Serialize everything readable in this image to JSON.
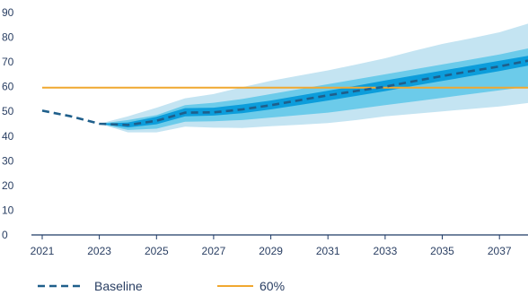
{
  "chart_data": {
    "type": "line",
    "title": "",
    "xlabel": "",
    "ylabel": "",
    "xlim": [
      2021,
      2038
    ],
    "ylim": [
      0,
      90
    ],
    "x_ticks": [
      2021,
      2023,
      2025,
      2027,
      2029,
      2031,
      2033,
      2035,
      2037
    ],
    "y_ticks": [
      0,
      10,
      20,
      30,
      40,
      50,
      60,
      70,
      80,
      90
    ],
    "grid": false,
    "legend_position": "bottom",
    "colors": {
      "baseline": "#1f5f8b",
      "threshold": "#f0a830",
      "band_outer": "#c4e4f2",
      "band_mid": "#6ccbea",
      "band_inner": "#0c9ddb",
      "axis": "#1e3a66",
      "text": "#2a3f63"
    },
    "series": [
      {
        "name": "Baseline",
        "style": "dashed",
        "x": [
          2021,
          2022,
          2023,
          2024,
          2025,
          2026,
          2027,
          2028,
          2029,
          2030,
          2031,
          2032,
          2033,
          2034,
          2035,
          2036,
          2037,
          2038
        ],
        "values": [
          50.3,
          48.0,
          45.0,
          44.5,
          46.2,
          49.5,
          49.6,
          50.8,
          52.5,
          54.5,
          56.5,
          58.3,
          60.0,
          62.2,
          64.3,
          66.3,
          68.2,
          70.5
        ]
      },
      {
        "name": "60%",
        "style": "solid",
        "x": [
          2021,
          2038
        ],
        "values": [
          59.6,
          59.6
        ]
      }
    ],
    "bands": [
      {
        "level": "outer",
        "x": [
          2023,
          2024,
          2025,
          2026,
          2027,
          2028,
          2029,
          2030,
          2031,
          2032,
          2033,
          2034,
          2035,
          2036,
          2037,
          2038
        ],
        "low": [
          45.0,
          41.5,
          41.5,
          43.8,
          43.4,
          43.3,
          44.0,
          44.6,
          45.3,
          46.5,
          48.0,
          49.0,
          50.0,
          51.0,
          52.0,
          53.4
        ],
        "high": [
          45.0,
          48.0,
          51.5,
          55.3,
          57.0,
          59.8,
          62.4,
          64.5,
          66.6,
          69.0,
          71.5,
          74.5,
          77.3,
          79.6,
          82.0,
          85.5
        ]
      },
      {
        "level": "mid",
        "x": [
          2023,
          2024,
          2025,
          2026,
          2027,
          2028,
          2029,
          2030,
          2031,
          2032,
          2033,
          2034,
          2035,
          2036,
          2037,
          2038
        ],
        "low": [
          45.0,
          42.5,
          43.0,
          45.8,
          46.0,
          46.5,
          47.5,
          48.5,
          49.5,
          51.0,
          52.5,
          54.0,
          55.5,
          57.0,
          58.5,
          60.0
        ],
        "high": [
          45.0,
          46.5,
          48.5,
          52.5,
          53.5,
          55.0,
          57.0,
          59.0,
          61.0,
          63.0,
          65.0,
          67.0,
          69.0,
          71.0,
          73.0,
          75.5
        ]
      },
      {
        "level": "inner",
        "x": [
          2023,
          2024,
          2025,
          2026,
          2027,
          2028,
          2029,
          2030,
          2031,
          2032,
          2033,
          2034,
          2035,
          2036,
          2037,
          2038
        ],
        "low": [
          45.0,
          43.5,
          44.8,
          48.0,
          48.3,
          49.3,
          50.8,
          52.6,
          54.4,
          56.3,
          58.2,
          60.3,
          62.3,
          64.3,
          66.3,
          68.5
        ],
        "high": [
          45.0,
          45.5,
          47.8,
          51.3,
          51.5,
          52.8,
          54.4,
          56.4,
          58.4,
          60.4,
          62.5,
          64.5,
          66.5,
          68.5,
          70.5,
          72.5
        ]
      }
    ],
    "legend": [
      {
        "label": "Baseline",
        "style": "dashed"
      },
      {
        "label": "60%",
        "style": "solid"
      }
    ]
  }
}
